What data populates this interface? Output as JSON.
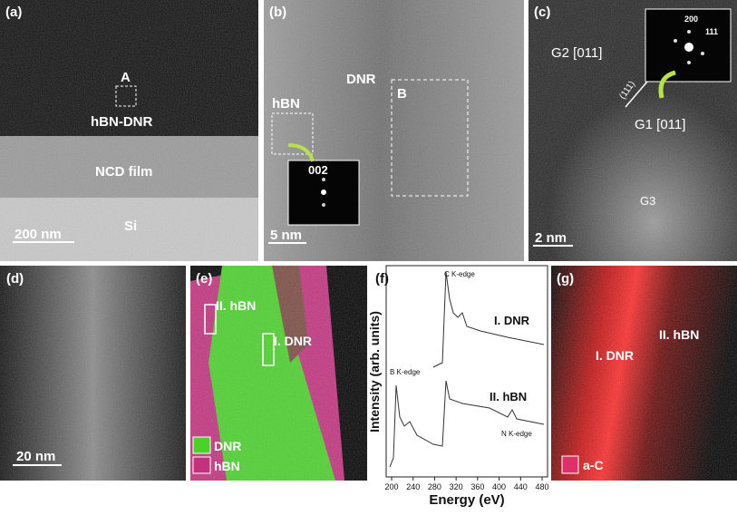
{
  "panels": {
    "a": {
      "label": "(a)",
      "box": "A",
      "layer": "hBN-DNR",
      "film": "NCD film",
      "substrate": "Si",
      "scale": "200 nm"
    },
    "b": {
      "label": "(b)",
      "region1": "hBN",
      "region2": "DNR",
      "box": "B",
      "inset": "002",
      "scale": "5 nm"
    },
    "c": {
      "label": "(c)",
      "grain2": "G2 [011]",
      "grain1": "G1 [011]",
      "grain3": "G3",
      "plane": "(111)",
      "inset1": "200",
      "inset2": "111",
      "scale": "2 nm"
    },
    "d": {
      "label": "(d)",
      "scale": "20 nm"
    },
    "e": {
      "label": "(e)",
      "region2": "II. hBN",
      "region1": "I. DNR",
      "legend": [
        "DNR",
        "hBN"
      ]
    },
    "f": {
      "label": "(f)",
      "edge1": "C K-edge",
      "curve1": "I. DNR",
      "edge2": "B K-edge",
      "curve2": "II. hBN",
      "edge3": "N K-edge",
      "ylabel": "Intensity (arb. units)",
      "xlabel": "Energy (eV)",
      "xticks": [
        200,
        240,
        280,
        320,
        360,
        400,
        440,
        480
      ]
    },
    "g": {
      "label": "(g)",
      "region1": "I. DNR",
      "region2": "II. hBN",
      "legend": "a-C"
    }
  }
}
